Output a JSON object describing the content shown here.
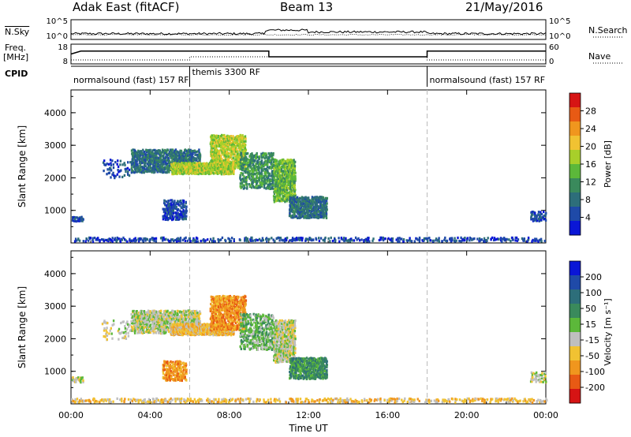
{
  "header": {
    "station": "Adak East (fitACF)",
    "beam": "Beam 13",
    "date": "21/May/2016"
  },
  "top_strip": {
    "nsky_label": "N.Sky",
    "nsky_ticks": [
      "10^5",
      "10^0"
    ],
    "nsearch_label": "N.Search",
    "nsearch_ticks": [
      "10^5",
      "10^0"
    ],
    "freq_label": "Freq.",
    "freq_unit": "[MHz]",
    "freq_ticks": [
      "18",
      "8"
    ],
    "nave_label": "Nave",
    "nave_ticks": [
      "60",
      "0"
    ],
    "cpid_label": "CPID",
    "cpid_segments": [
      {
        "name": "normalsound (fast) 157 RF",
        "start_hour": 0,
        "end_hour": 6
      },
      {
        "name": "themis 3300 RF",
        "start_hour": 6,
        "end_hour": 18
      },
      {
        "name": "normalsound (fast) 157 RF",
        "start_hour": 18,
        "end_hour": 24
      }
    ],
    "freq_series": [
      {
        "hour": 0,
        "freq": 13.0
      },
      {
        "hour": 0.5,
        "freq": 14.5
      },
      {
        "hour": 10,
        "freq": 14.5
      },
      {
        "hour": 10,
        "freq": 11.6
      },
      {
        "hour": 18,
        "freq": 11.6
      },
      {
        "hour": 18,
        "freq": 14.5
      },
      {
        "hour": 24,
        "freq": 14.5
      }
    ]
  },
  "chart_data": [
    {
      "type": "heatmap",
      "panel": "power",
      "ylabel": "Slant Range [km]",
      "yticks": [
        1000,
        2000,
        3000,
        4000
      ],
      "ylim": [
        0,
        4700
      ],
      "xlim": [
        0,
        24
      ],
      "colorbar_label": "Power [dB]",
      "colorbar_ticks": [
        "28",
        "24",
        "20",
        "16",
        "12",
        "8",
        "4"
      ],
      "colors": [
        "#0a16d6",
        "#1f4aa8",
        "#2d6e7a",
        "#3a8a5c",
        "#5cb83a",
        "#a8cf2a",
        "#f1c232",
        "#f0961e",
        "#e85a14",
        "#d61414"
      ],
      "regions": [
        {
          "h0": 3.0,
          "h1": 6.5,
          "r0": 2200,
          "r1": 2900,
          "density": 0.55,
          "level": 2
        },
        {
          "h0": 5.0,
          "h1": 8.2,
          "r0": 2150,
          "r1": 2500,
          "density": 0.85,
          "level": 5
        },
        {
          "h0": 7.0,
          "h1": 8.8,
          "r0": 2300,
          "r1": 3350,
          "density": 0.55,
          "level": 5
        },
        {
          "h0": 8.5,
          "h1": 10.2,
          "r0": 1700,
          "r1": 2800,
          "density": 0.4,
          "level": 3
        },
        {
          "h0": 10.2,
          "h1": 11.3,
          "r0": 1300,
          "r1": 2600,
          "density": 0.6,
          "level": 4
        },
        {
          "h0": 11.0,
          "h1": 12.9,
          "r0": 800,
          "r1": 1450,
          "density": 0.6,
          "level": 2
        },
        {
          "h0": 4.6,
          "h1": 5.8,
          "r0": 750,
          "r1": 1350,
          "density": 0.45,
          "level": 1
        },
        {
          "h0": 0.0,
          "h1": 0.6,
          "r0": 700,
          "r1": 850,
          "density": 0.7,
          "level": 1
        },
        {
          "h0": 0.0,
          "h1": 24.0,
          "r0": 80,
          "r1": 200,
          "density": 0.25,
          "level": 1
        },
        {
          "h0": 23.2,
          "h1": 24.0,
          "r0": 700,
          "r1": 1000,
          "density": 0.4,
          "level": 1
        },
        {
          "h0": 1.5,
          "h1": 3.0,
          "r0": 2000,
          "r1": 2600,
          "density": 0.12,
          "level": 1
        }
      ]
    },
    {
      "type": "heatmap",
      "panel": "velocity",
      "ylabel": "Slant Range [km]",
      "yticks": [
        1000,
        2000,
        3000,
        4000
      ],
      "ylim": [
        0,
        4700
      ],
      "xlim": [
        0,
        24
      ],
      "xlabel": "Time UT",
      "xticks": [
        "00:00",
        "04:00",
        "08:00",
        "12:00",
        "16:00",
        "20:00",
        "00:00"
      ],
      "colorbar_label": "Velocity [m s⁻¹]",
      "colorbar_ticks": [
        "200",
        "100",
        "50",
        "15",
        "-15",
        "-50",
        "-100",
        "-200"
      ],
      "colors": [
        "#0a16d6",
        "#1f4aa8",
        "#2d6e7a",
        "#3a8a5c",
        "#5cb83a",
        "#bfbfbf",
        "#f1c232",
        "#f0961e",
        "#e85a14",
        "#d61414"
      ],
      "regions": [
        {
          "h0": 3.0,
          "h1": 6.5,
          "r0": 2200,
          "r1": 2900,
          "density": 0.55,
          "level": 5
        },
        {
          "h0": 5.0,
          "h1": 8.2,
          "r0": 2150,
          "r1": 2500,
          "density": 0.85,
          "level": 6
        },
        {
          "h0": 7.0,
          "h1": 8.8,
          "r0": 2300,
          "r1": 3350,
          "density": 0.55,
          "level": 7
        },
        {
          "h0": 8.5,
          "h1": 10.2,
          "r0": 1700,
          "r1": 2800,
          "density": 0.4,
          "level": 4
        },
        {
          "h0": 10.2,
          "h1": 11.3,
          "r0": 1300,
          "r1": 2600,
          "density": 0.6,
          "level": 5
        },
        {
          "h0": 11.0,
          "h1": 12.9,
          "r0": 800,
          "r1": 1450,
          "density": 0.6,
          "level": 3
        },
        {
          "h0": 4.6,
          "h1": 5.8,
          "r0": 750,
          "r1": 1350,
          "density": 0.45,
          "level": 7
        },
        {
          "h0": 0.0,
          "h1": 0.6,
          "r0": 700,
          "r1": 850,
          "density": 0.7,
          "level": 5
        },
        {
          "h0": 0.0,
          "h1": 24.0,
          "r0": 80,
          "r1": 200,
          "density": 0.25,
          "level": 6
        },
        {
          "h0": 23.2,
          "h1": 24.0,
          "r0": 700,
          "r1": 1000,
          "density": 0.4,
          "level": 5
        },
        {
          "h0": 1.5,
          "h1": 3.0,
          "r0": 2000,
          "r1": 2600,
          "density": 0.12,
          "level": 5
        }
      ]
    }
  ]
}
